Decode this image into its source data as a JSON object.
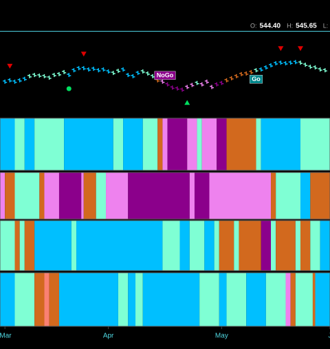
{
  "chart_data": {
    "type": "ohlc-regime",
    "header": [
      {
        "label": "O:",
        "value": "544.40"
      },
      {
        "label": "H:",
        "value": "545.65"
      },
      {
        "label": "L:"
      }
    ],
    "xlim": [
      -1,
      66
    ],
    "xticks": [
      {
        "value": 0,
        "label": "Mar"
      },
      {
        "value": 21,
        "label": "Apr"
      },
      {
        "value": 44,
        "label": "May"
      },
      {
        "value": 66,
        "label": "J"
      }
    ],
    "ylim": [
      519,
      557
    ],
    "values": [
      534.5,
      535.2,
      534.5,
      535.2,
      535.9,
      537.2,
      537.8,
      537.5,
      537.2,
      536.5,
      537.8,
      538.2,
      539.2,
      537.8,
      540.1,
      541.1,
      541.1,
      540.5,
      540.8,
      540.1,
      540.5,
      539.5,
      538.8,
      539.8,
      540.5,
      537.8,
      537.2,
      538.8,
      539.5,
      538.5,
      537.2,
      535.2,
      534.5,
      533.2,
      531.6,
      531.2,
      530.6,
      531.9,
      532.9,
      533.9,
      533.2,
      534.5,
      531.9,
      533.2,
      533.9,
      535.2,
      536.2,
      537.2,
      538.2,
      538.5,
      539.2,
      540.1,
      540.5,
      541.5,
      542.5,
      543.5,
      543.8,
      543.5,
      543.8,
      544.1,
      543.8,
      542.8,
      541.8,
      541.5,
      540.5,
      540.1
    ],
    "colors": [
      "#00bfff",
      "#00bfff",
      "#00bfff",
      "#00bfff",
      "#00bfff",
      "#7fffd4",
      "#7fffd4",
      "#7fffd4",
      "#7fffd4",
      "#7fffd4",
      "#7fffd4",
      "#7fffd4",
      "#7fffd4",
      "#00bfff",
      "#00bfff",
      "#00bfff",
      "#00bfff",
      "#00bfff",
      "#00bfff",
      "#00bfff",
      "#00bfff",
      "#00bfff",
      "#7fffd4",
      "#7fffd4",
      "#00bfff",
      "#00bfff",
      "#00bfff",
      "#00bfff",
      "#7fffd4",
      "#7fffd4",
      "#7fffd4",
      "#d2691e",
      "#ee82ee",
      "#8b008b",
      "#8b008b",
      "#8b008b",
      "#8b008b",
      "#ee82ee",
      "#ee82ee",
      "#7fffd4",
      "#ee82ee",
      "#ee82ee",
      "#ee82ee",
      "#8b008b",
      "#8b008b",
      "#d2691e",
      "#d2691e",
      "#d2691e",
      "#d2691e",
      "#d2691e",
      "#d2691e",
      "#7fffd4",
      "#00bfff",
      "#00bfff",
      "#00bfff",
      "#00bfff",
      "#00bfff",
      "#00bfff",
      "#00bfff",
      "#00bfff",
      "#7fffd4",
      "#7fffd4",
      "#7fffd4",
      "#7fffd4",
      "#7fffd4",
      "#7fffd4"
    ],
    "markers": [
      {
        "x": 1,
        "shape": "triangle-down",
        "color": "#e00000"
      },
      {
        "x": 16,
        "shape": "triangle-down",
        "color": "#e00000"
      },
      {
        "x": 56,
        "shape": "triangle-down",
        "color": "#e00000"
      },
      {
        "x": 60,
        "shape": "triangle-down",
        "color": "#e00000"
      },
      {
        "x": 13,
        "shape": "dot",
        "color": "#00e060"
      },
      {
        "x": 37,
        "shape": "triangle-up",
        "color": "#00e060"
      }
    ],
    "annotations": [
      {
        "text": "NoGo",
        "x": 32.5,
        "color": "#8b008b",
        "position": "above"
      },
      {
        "text": "Go",
        "x": 51,
        "color": "#00868b",
        "position": "below"
      }
    ],
    "bands": [
      [
        {
          "start": -1,
          "end": 2,
          "color": "#00bfff"
        },
        {
          "start": 2,
          "end": 4,
          "color": "#7fffd4"
        },
        {
          "start": 4,
          "end": 6,
          "color": "#00bfff"
        },
        {
          "start": 6,
          "end": 12,
          "color": "#7fffd4"
        },
        {
          "start": 12,
          "end": 22,
          "color": "#00bfff"
        },
        {
          "start": 22,
          "end": 24,
          "color": "#7fffd4"
        },
        {
          "start": 24,
          "end": 28,
          "color": "#00bfff"
        },
        {
          "start": 28,
          "end": 31,
          "color": "#7fffd4"
        },
        {
          "start": 31,
          "end": 32,
          "color": "#d2691e"
        },
        {
          "start": 32,
          "end": 33,
          "color": "#ee82ee"
        },
        {
          "start": 33,
          "end": 37,
          "color": "#8b008b"
        },
        {
          "start": 37,
          "end": 39,
          "color": "#ee82ee"
        },
        {
          "start": 39,
          "end": 40,
          "color": "#7fffd4"
        },
        {
          "start": 40,
          "end": 43,
          "color": "#ee82ee"
        },
        {
          "start": 43,
          "end": 45,
          "color": "#8b008b"
        },
        {
          "start": 45,
          "end": 51,
          "color": "#d2691e"
        },
        {
          "start": 51,
          "end": 52,
          "color": "#7fffd4"
        },
        {
          "start": 52,
          "end": 60,
          "color": "#00bfff"
        },
        {
          "start": 60,
          "end": 66,
          "color": "#7fffd4"
        }
      ],
      [
        {
          "start": -1,
          "end": 0,
          "color": "#ee82ee"
        },
        {
          "start": 0,
          "end": 2,
          "color": "#d2691e"
        },
        {
          "start": 2,
          "end": 7,
          "color": "#7fffd4"
        },
        {
          "start": 7,
          "end": 8,
          "color": "#d2691e"
        },
        {
          "start": 8,
          "end": 11,
          "color": "#ee82ee"
        },
        {
          "start": 11,
          "end": 15.5,
          "color": "#8b008b"
        },
        {
          "start": 15.5,
          "end": 16,
          "color": "#ee82ee"
        },
        {
          "start": 16,
          "end": 18.5,
          "color": "#d2691e"
        },
        {
          "start": 18.5,
          "end": 20.5,
          "color": "#7fffd4"
        },
        {
          "start": 20.5,
          "end": 25,
          "color": "#ee82ee"
        },
        {
          "start": 25,
          "end": 37.5,
          "color": "#8b008b"
        },
        {
          "start": 37.5,
          "end": 38.5,
          "color": "#ee82ee"
        },
        {
          "start": 38.5,
          "end": 41.5,
          "color": "#8b008b"
        },
        {
          "start": 41.5,
          "end": 54,
          "color": "#ee82ee"
        },
        {
          "start": 54,
          "end": 55,
          "color": "#d2691e"
        },
        {
          "start": 55,
          "end": 60,
          "color": "#7fffd4"
        },
        {
          "start": 60,
          "end": 62,
          "color": "#00bfff"
        },
        {
          "start": 62,
          "end": 66,
          "color": "#d2691e"
        }
      ],
      [
        {
          "start": -1,
          "end": 2,
          "color": "#7fffd4"
        },
        {
          "start": 2,
          "end": 3,
          "color": "#d2691e"
        },
        {
          "start": 3,
          "end": 4,
          "color": "#7fffd4"
        },
        {
          "start": 4,
          "end": 6,
          "color": "#d2691e"
        },
        {
          "start": 6,
          "end": 13.5,
          "color": "#00bfff"
        },
        {
          "start": 13.5,
          "end": 14.5,
          "color": "#7fffd4"
        },
        {
          "start": 14.5,
          "end": 32,
          "color": "#00bfff"
        },
        {
          "start": 32,
          "end": 35.5,
          "color": "#7fffd4"
        },
        {
          "start": 35.5,
          "end": 37.5,
          "color": "#00bfff"
        },
        {
          "start": 37.5,
          "end": 40.5,
          "color": "#7fffd4"
        },
        {
          "start": 40.5,
          "end": 42.5,
          "color": "#00bfff"
        },
        {
          "start": 42.5,
          "end": 43.5,
          "color": "#7fffd4"
        },
        {
          "start": 43.5,
          "end": 46.5,
          "color": "#d2691e"
        },
        {
          "start": 46.5,
          "end": 47.5,
          "color": "#7fffd4"
        },
        {
          "start": 47.5,
          "end": 52,
          "color": "#d2691e"
        },
        {
          "start": 52,
          "end": 54,
          "color": "#8b008b"
        },
        {
          "start": 54,
          "end": 55,
          "color": "#7fffd4"
        },
        {
          "start": 55,
          "end": 59,
          "color": "#d2691e"
        },
        {
          "start": 59,
          "end": 60,
          "color": "#7fffd4"
        },
        {
          "start": 60,
          "end": 62,
          "color": "#d2691e"
        },
        {
          "start": 62,
          "end": 64,
          "color": "#7fffd4"
        },
        {
          "start": 64,
          "end": 66,
          "color": "#00bfff"
        }
      ],
      [
        {
          "start": -1,
          "end": 2,
          "color": "#00bfff"
        },
        {
          "start": 2,
          "end": 6,
          "color": "#7fffd4"
        },
        {
          "start": 6,
          "end": 8,
          "color": "#d2691e"
        },
        {
          "start": 8,
          "end": 9,
          "color": "#fa8072"
        },
        {
          "start": 9,
          "end": 11,
          "color": "#d2691e"
        },
        {
          "start": 11,
          "end": 23,
          "color": "#00bfff"
        },
        {
          "start": 23,
          "end": 25,
          "color": "#7fffd4"
        },
        {
          "start": 25,
          "end": 26.5,
          "color": "#00bfff"
        },
        {
          "start": 26.5,
          "end": 28,
          "color": "#7fffd4"
        },
        {
          "start": 28,
          "end": 39.5,
          "color": "#00bfff"
        },
        {
          "start": 39.5,
          "end": 43.5,
          "color": "#7fffd4"
        },
        {
          "start": 43.5,
          "end": 45,
          "color": "#00bfff"
        },
        {
          "start": 45,
          "end": 49,
          "color": "#7fffd4"
        },
        {
          "start": 49,
          "end": 53,
          "color": "#00bfff"
        },
        {
          "start": 53,
          "end": 57,
          "color": "#7fffd4"
        },
        {
          "start": 57,
          "end": 58,
          "color": "#ee82ee"
        },
        {
          "start": 58,
          "end": 59,
          "color": "#d2691e"
        },
        {
          "start": 59,
          "end": 62.5,
          "color": "#7fffd4"
        },
        {
          "start": 62.5,
          "end": 63,
          "color": "#d2691e"
        },
        {
          "start": 63,
          "end": 66,
          "color": "#00bfff"
        }
      ]
    ]
  }
}
